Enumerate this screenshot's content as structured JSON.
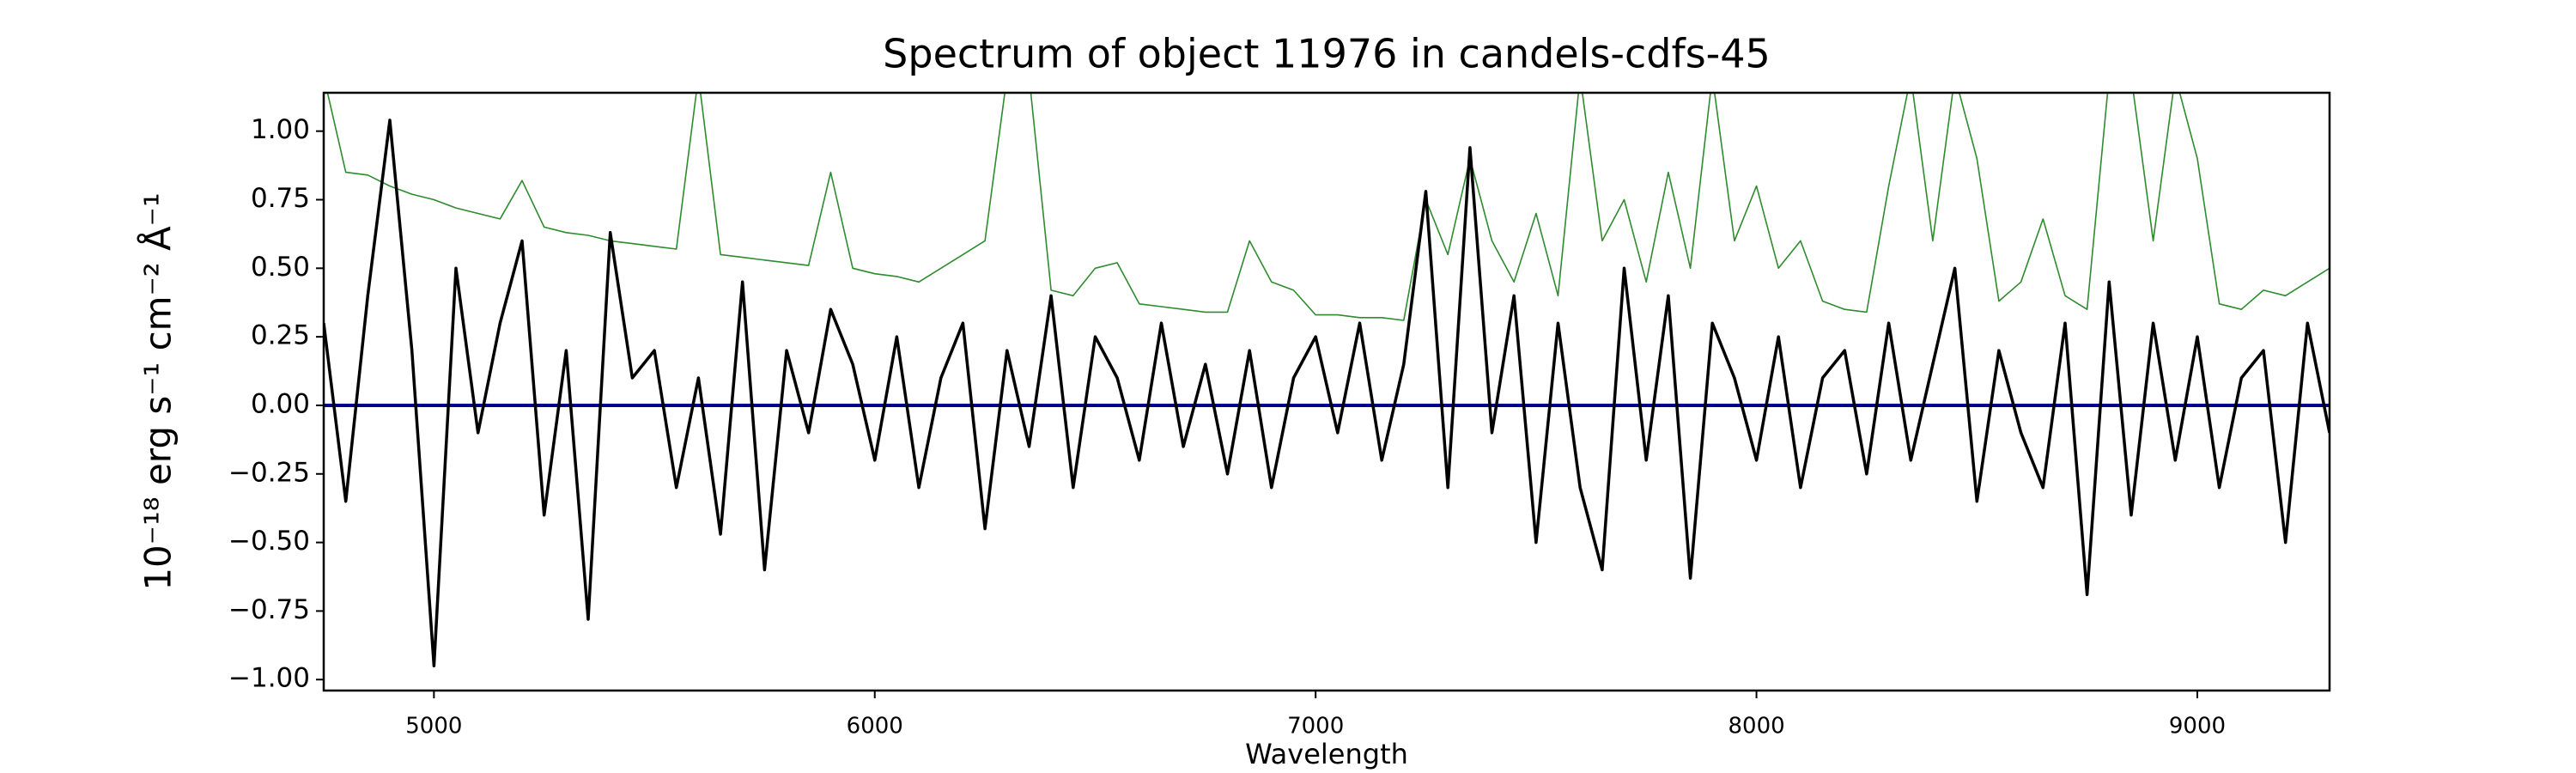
{
  "chart_data": {
    "type": "line",
    "title": "Spectrum of object 11976 in candels-cdfs-45",
    "xlabel": "Wavelength",
    "ylabel": "10⁻¹⁸ erg s⁻¹ cm⁻² Å⁻¹",
    "xlim": [
      4750,
      9300
    ],
    "ylim": [
      -1.04,
      1.14
    ],
    "xticks": [
      5000,
      6000,
      7000,
      8000,
      9000
    ],
    "yticks": [
      {
        "value": -1,
        "label": "−1.00"
      },
      {
        "value": -0.75,
        "label": "−0.75"
      },
      {
        "value": -0.5,
        "label": "−0.50"
      },
      {
        "value": -0.25,
        "label": "−0.25"
      },
      {
        "value": 0,
        "label": "0.00"
      },
      {
        "value": 0.25,
        "label": "0.25"
      },
      {
        "value": 0.5,
        "label": "0.50"
      },
      {
        "value": 0.75,
        "label": "0.75"
      },
      {
        "value": 1,
        "label": "1.00"
      }
    ],
    "x": [
      4750,
      4800,
      4850,
      4900,
      4950,
      5000,
      5050,
      5100,
      5150,
      5200,
      5250,
      5300,
      5350,
      5400,
      5450,
      5500,
      5550,
      5600,
      5650,
      5700,
      5750,
      5800,
      5850,
      5900,
      5950,
      6000,
      6050,
      6100,
      6150,
      6200,
      6250,
      6300,
      6350,
      6400,
      6450,
      6500,
      6550,
      6600,
      6650,
      6700,
      6750,
      6800,
      6850,
      6900,
      6950,
      7000,
      7050,
      7100,
      7150,
      7200,
      7250,
      7300,
      7350,
      7400,
      7450,
      7500,
      7550,
      7600,
      7650,
      7700,
      7750,
      7800,
      7850,
      7900,
      7950,
      8000,
      8050,
      8100,
      8150,
      8200,
      8250,
      8300,
      8350,
      8400,
      8450,
      8500,
      8550,
      8600,
      8650,
      8700,
      8750,
      8800,
      8850,
      8900,
      8950,
      9000,
      9050,
      9100,
      9150,
      9200,
      9250,
      9300
    ],
    "series": [
      {
        "color": "#2e8b2e",
        "width": 1.6,
        "values": [
          1.2,
          0.85,
          0.84,
          0.8,
          0.77,
          0.75,
          0.72,
          0.7,
          0.68,
          0.82,
          0.65,
          0.63,
          0.62,
          0.6,
          0.59,
          0.58,
          0.57,
          1.2,
          0.55,
          0.54,
          0.53,
          0.52,
          0.51,
          0.85,
          0.5,
          0.48,
          0.47,
          0.45,
          0.5,
          0.55,
          0.6,
          1.2,
          1.2,
          0.42,
          0.4,
          0.5,
          0.52,
          0.37,
          0.36,
          0.35,
          0.34,
          0.34,
          0.6,
          0.45,
          0.42,
          0.33,
          0.33,
          0.32,
          0.32,
          0.31,
          0.75,
          0.55,
          0.9,
          0.6,
          0.45,
          0.7,
          0.4,
          1.2,
          0.6,
          0.75,
          0.45,
          0.85,
          0.5,
          1.2,
          0.6,
          0.8,
          0.5,
          0.6,
          0.38,
          0.35,
          0.34,
          0.8,
          1.2,
          0.6,
          1.2,
          0.9,
          0.38,
          0.45,
          0.68,
          0.4,
          0.35,
          1.2,
          1.2,
          0.6,
          1.2,
          0.9,
          0.37,
          0.35,
          0.42,
          0.4,
          0.45,
          0.5
        ]
      },
      {
        "color": "#00008b",
        "width": 4,
        "values": [
          0,
          0,
          0,
          0,
          0,
          0,
          0,
          0,
          0,
          0,
          0,
          0,
          0,
          0,
          0,
          0,
          0,
          0,
          0,
          0,
          0,
          0,
          0,
          0,
          0,
          0,
          0,
          0,
          0,
          0,
          0,
          0,
          0,
          0,
          0,
          0,
          0,
          0,
          0,
          0,
          0,
          0,
          0,
          0,
          0,
          0,
          0,
          0,
          0,
          0,
          0,
          0,
          0,
          0,
          0,
          0,
          0,
          0,
          0,
          0,
          0,
          0,
          0,
          0,
          0,
          0,
          0,
          0,
          0,
          0,
          0,
          0,
          0,
          0,
          0,
          0,
          0,
          0,
          0,
          0,
          0,
          0,
          0,
          0,
          0,
          0,
          0,
          0,
          0,
          0,
          0,
          0
        ]
      },
      {
        "color": "#000000",
        "width": 3.5,
        "values": [
          0.3,
          -0.35,
          0.4,
          1.04,
          0.2,
          -0.95,
          0.5,
          -0.1,
          0.3,
          0.6,
          -0.4,
          0.2,
          -0.78,
          0.63,
          0.1,
          0.2,
          -0.3,
          0.1,
          -0.47,
          0.45,
          -0.6,
          0.2,
          -0.1,
          0.35,
          0.15,
          -0.2,
          0.25,
          -0.3,
          0.1,
          0.3,
          -0.45,
          0.2,
          -0.15,
          0.4,
          -0.3,
          0.25,
          0.1,
          -0.2,
          0.3,
          -0.15,
          0.15,
          -0.25,
          0.2,
          -0.3,
          0.1,
          0.25,
          -0.1,
          0.3,
          -0.2,
          0.15,
          0.78,
          -0.3,
          0.94,
          -0.1,
          0.4,
          -0.5,
          0.3,
          -0.3,
          -0.6,
          0.5,
          -0.2,
          0.4,
          -0.63,
          0.3,
          0.1,
          -0.2,
          0.25,
          -0.3,
          0.1,
          0.2,
          -0.25,
          0.3,
          -0.2,
          0.15,
          0.5,
          -0.35,
          0.2,
          -0.1,
          -0.3,
          0.3,
          -0.69,
          0.45,
          -0.4,
          0.3,
          -0.2,
          0.25,
          -0.3,
          0.1,
          0.2,
          -0.5,
          0.3,
          -0.1
        ]
      }
    ]
  }
}
